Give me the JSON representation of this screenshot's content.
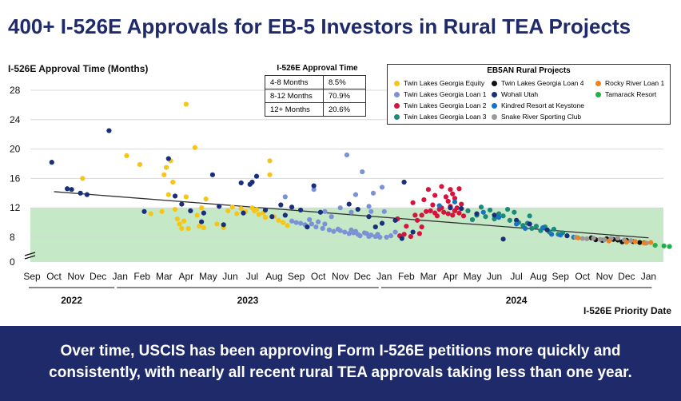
{
  "title": "400+ I-526E Approvals for EB-5 Investors in Rural TEA Projects",
  "banner": {
    "line1": "Over time, USCIS has been approving Form I-526E petitions more quickly and",
    "line2": "consistently, with nearly all recent rural TEA approvals taking less than one year."
  },
  "approval_table": {
    "title": "I-526E Approval Time",
    "rows": [
      {
        "range": "4-8 Months",
        "pct": "8.5%"
      },
      {
        "range": "8-12 Months",
        "pct": "70.9%"
      },
      {
        "range": "12+ Months",
        "pct": "20.6%"
      }
    ]
  },
  "legend": {
    "title": "EB5AN Rural Projects",
    "items": [
      {
        "name": "Twin Lakes Georgia Equity",
        "color": "#f5c518"
      },
      {
        "name": "Twin Lakes Georgia Loan 1",
        "color": "#7b93d4"
      },
      {
        "name": "Twin Lakes Georgia Loan 2",
        "color": "#d4143c"
      },
      {
        "name": "Twin Lakes Georgia Loan 3",
        "color": "#1a8a7a"
      },
      {
        "name": "Twin Lakes Georgia Loan 4",
        "color": "#111111"
      },
      {
        "name": "Wohali Utah",
        "color": "#1a2f7a"
      },
      {
        "name": "Kindred Resort at Keystone",
        "color": "#1a72c4"
      },
      {
        "name": "Snake River Sporting Club",
        "color": "#999999"
      },
      {
        "name": "Rocky River Loan 1",
        "color": "#f0821e"
      },
      {
        "name": "Tamarack Resort",
        "color": "#22b04a"
      }
    ]
  },
  "chart_data": {
    "type": "scatter",
    "ylabel": "I-526E Approval Time (Months)",
    "xlabel": "I-526E Priority Date",
    "ylim": [
      0,
      28
    ],
    "yticks": [
      0,
      8,
      12,
      16,
      20,
      24,
      28
    ],
    "x_months": [
      "Sep",
      "Oct",
      "Nov",
      "Dec",
      "Jan",
      "Feb",
      "Mar",
      "Apr",
      "May",
      "Jun",
      "Jul",
      "Aug",
      "Sep",
      "Oct",
      "Nov",
      "Dec",
      "Jan",
      "Feb",
      "Mar",
      "Apr",
      "May",
      "Jun",
      "Jul",
      "Aug",
      "Sep",
      "Oct",
      "Nov",
      "Dec",
      "Jan"
    ],
    "years": [
      {
        "label": "2022",
        "from": 0,
        "to": 3.6
      },
      {
        "label": "2023",
        "from": 4,
        "to": 15.6
      },
      {
        "label": "2024",
        "from": 16,
        "to": 28
      }
    ],
    "band": {
      "from": 0,
      "to": 12
    },
    "trend": {
      "x": [
        1,
        28
      ],
      "y": [
        14.2,
        7.8
      ]
    },
    "series": [
      {
        "name": "Twin Lakes Georgia Equity",
        "color": "#f5c518",
        "points": [
          [
            2.3,
            16
          ],
          [
            4.3,
            19.1
          ],
          [
            4.9,
            17.9
          ],
          [
            5.4,
            11.2
          ],
          [
            5.9,
            11.5
          ],
          [
            6.0,
            16.5
          ],
          [
            6.1,
            17.5
          ],
          [
            6.2,
            13.8
          ],
          [
            6.3,
            18.4
          ],
          [
            6.4,
            15.5
          ],
          [
            6.5,
            11.8
          ],
          [
            6.6,
            10.5
          ],
          [
            6.7,
            9.8
          ],
          [
            6.8,
            9.2
          ],
          [
            6.9,
            10.2
          ],
          [
            7.0,
            26.1
          ],
          [
            7.0,
            13.5
          ],
          [
            7.1,
            9.2
          ],
          [
            7.4,
            20.2
          ],
          [
            7.5,
            11.0
          ],
          [
            7.6,
            9.5
          ],
          [
            7.7,
            12.0
          ],
          [
            7.9,
            13.2
          ],
          [
            7.8,
            9.3
          ],
          [
            8.4,
            9.8
          ],
          [
            8.7,
            9.3
          ],
          [
            8.9,
            11.6
          ],
          [
            9.1,
            12.1
          ],
          [
            9.3,
            11.2
          ],
          [
            9.5,
            11.9
          ],
          [
            9.7,
            11.5
          ],
          [
            10.0,
            12.0
          ],
          [
            10.1,
            11.6
          ],
          [
            10.2,
            11.8
          ],
          [
            10.3,
            11.1
          ],
          [
            10.5,
            11.3
          ],
          [
            10.6,
            10.7
          ],
          [
            10.8,
            16.5
          ],
          [
            10.8,
            18.4
          ],
          [
            11.0,
            10.8
          ],
          [
            11.2,
            10.3
          ],
          [
            11.4,
            10.0
          ],
          [
            11.6,
            9.6
          ]
        ]
      },
      {
        "name": "Twin Lakes Georgia Loan 1",
        "color": "#7b93d4",
        "points": [
          [
            11.5,
            13.5
          ],
          [
            11.8,
            10.2
          ],
          [
            12.0,
            10.0
          ],
          [
            12.2,
            9.9
          ],
          [
            12.4,
            9.7
          ],
          [
            12.6,
            10.4
          ],
          [
            12.7,
            9.8
          ],
          [
            12.9,
            9.4
          ],
          [
            13.0,
            10.1
          ],
          [
            13.2,
            9.2
          ],
          [
            13.3,
            9.8
          ],
          [
            13.5,
            9.0
          ],
          [
            13.7,
            8.8
          ],
          [
            13.9,
            9.1
          ],
          [
            14.0,
            8.9
          ],
          [
            14.2,
            8.7
          ],
          [
            14.3,
            19.2
          ],
          [
            14.4,
            8.5
          ],
          [
            14.5,
            9.0
          ],
          [
            14.6,
            8.6
          ],
          [
            14.7,
            8.8
          ],
          [
            14.8,
            8.4
          ],
          [
            14.9,
            8.2
          ],
          [
            15.0,
            16.9
          ],
          [
            15.1,
            8.6
          ],
          [
            15.2,
            8.5
          ],
          [
            15.3,
            8.1
          ],
          [
            15.4,
            8.3
          ],
          [
            15.5,
            14.0
          ],
          [
            15.6,
            8.1
          ],
          [
            15.7,
            8.4
          ],
          [
            15.8,
            8.0
          ],
          [
            15.9,
            14.8
          ],
          [
            16.1,
            8.0
          ],
          [
            16.3,
            8.2
          ],
          [
            12.8,
            14.5
          ],
          [
            13.3,
            11.5
          ],
          [
            15.4,
            11.5
          ],
          [
            16.0,
            11.5
          ],
          [
            14.0,
            12.0
          ],
          [
            14.7,
            13.8
          ],
          [
            15.3,
            12.2
          ],
          [
            16.5,
            8.7
          ],
          [
            14.5,
            11.4
          ],
          [
            13.6,
            10.8
          ]
        ]
      },
      {
        "name": "Twin Lakes Georgia Loan 2",
        "color": "#d4143c",
        "points": [
          [
            16.6,
            10.5
          ],
          [
            16.7,
            8.2
          ],
          [
            16.9,
            8.4
          ],
          [
            17.0,
            9.5
          ],
          [
            17.2,
            8.1
          ],
          [
            17.3,
            12.7
          ],
          [
            17.4,
            11.0
          ],
          [
            17.5,
            10.3
          ],
          [
            17.6,
            8.5
          ],
          [
            17.7,
            9.4
          ],
          [
            17.8,
            13.1
          ],
          [
            17.9,
            11.5
          ],
          [
            18.0,
            14.5
          ],
          [
            18.1,
            11.6
          ],
          [
            18.2,
            12.4
          ],
          [
            18.3,
            13.7
          ],
          [
            18.4,
            10.9
          ],
          [
            18.5,
            11.8
          ],
          [
            18.6,
            14.9
          ],
          [
            18.6,
            12.0
          ],
          [
            18.7,
            11.4
          ],
          [
            18.8,
            13.5
          ],
          [
            18.9,
            11.2
          ],
          [
            19.0,
            14.5
          ],
          [
            19.0,
            12.2
          ],
          [
            19.1,
            11.0
          ],
          [
            19.2,
            13.3
          ],
          [
            19.2,
            11.6
          ],
          [
            19.3,
            12.0
          ],
          [
            19.4,
            11.3
          ],
          [
            19.5,
            12.5
          ],
          [
            19.4,
            14.6
          ],
          [
            19.6,
            10.9
          ],
          [
            17.7,
            11.0
          ],
          [
            18.3,
            11.3
          ],
          [
            18.9,
            12.9
          ],
          [
            19.1,
            13.9
          ]
        ]
      },
      {
        "name": "Twin Lakes Georgia Loan 3",
        "color": "#1a8a7a",
        "points": [
          [
            19.8,
            11.6
          ],
          [
            20.0,
            10.4
          ],
          [
            20.2,
            11.0
          ],
          [
            20.4,
            12.1
          ],
          [
            20.6,
            10.8
          ],
          [
            20.8,
            11.7
          ],
          [
            21.0,
            10.5
          ],
          [
            21.2,
            11.2
          ],
          [
            21.4,
            10.9
          ],
          [
            21.6,
            11.8
          ],
          [
            21.7,
            10.3
          ],
          [
            21.9,
            11.4
          ],
          [
            22.1,
            10.0
          ],
          [
            22.3,
            9.6
          ],
          [
            22.5,
            9.9
          ],
          [
            22.6,
            10.9
          ],
          [
            22.7,
            9.2
          ],
          [
            22.9,
            9.5
          ],
          [
            23.1,
            8.9
          ],
          [
            23.3,
            9.4
          ],
          [
            23.5,
            8.7
          ],
          [
            23.7,
            9.1
          ],
          [
            23.9,
            8.4
          ],
          [
            24.1,
            8.6
          ]
        ]
      },
      {
        "name": "Twin Lakes Georgia Loan 4",
        "color": "#111111",
        "points": [
          [
            25.4,
            7.8
          ],
          [
            25.6,
            7.2
          ],
          [
            25.9,
            7.0
          ],
          [
            26.1,
            7.5
          ],
          [
            26.4,
            7.3
          ],
          [
            26.6,
            7.1
          ],
          [
            26.8,
            6.5
          ],
          [
            27.0,
            7.0
          ],
          [
            27.3,
            6.6
          ],
          [
            27.6,
            6.3
          ],
          [
            27.8,
            6.2
          ]
        ]
      },
      {
        "name": "Wohali Utah",
        "color": "#1a2f7a",
        "points": [
          [
            0.9,
            18.2
          ],
          [
            1.6,
            14.6
          ],
          [
            1.8,
            14.5
          ],
          [
            2.2,
            14.0
          ],
          [
            2.5,
            13.8
          ],
          [
            3.5,
            22.5
          ],
          [
            5.1,
            11.5
          ],
          [
            6.2,
            18.7
          ],
          [
            6.5,
            13.6
          ],
          [
            6.8,
            12.5
          ],
          [
            7.2,
            11.6
          ],
          [
            7.7,
            10.1
          ],
          [
            7.8,
            11.3
          ],
          [
            8.2,
            16.5
          ],
          [
            8.5,
            12.2
          ],
          [
            8.7,
            9.7
          ],
          [
            9.5,
            15.4
          ],
          [
            9.6,
            11.3
          ],
          [
            9.9,
            15.2
          ],
          [
            10.0,
            15.5
          ],
          [
            10.2,
            16.3
          ],
          [
            10.6,
            11.7
          ],
          [
            10.9,
            10.8
          ],
          [
            11.3,
            12.4
          ],
          [
            11.5,
            11.0
          ],
          [
            11.8,
            12.1
          ],
          [
            12.2,
            11.7
          ],
          [
            12.5,
            9.4
          ],
          [
            12.8,
            15.0
          ],
          [
            13.1,
            11.4
          ],
          [
            14.4,
            12.5
          ],
          [
            14.8,
            11.8
          ],
          [
            15.3,
            10.8
          ],
          [
            15.6,
            9.4
          ],
          [
            15.9,
            9.9
          ],
          [
            16.5,
            10.3
          ],
          [
            16.8,
            7.6
          ],
          [
            16.9,
            15.5
          ],
          [
            17.3,
            8.7
          ],
          [
            19.0,
            12.0
          ],
          [
            19.5,
            11.9
          ],
          [
            20.2,
            11.2
          ],
          [
            21.0,
            11.0
          ],
          [
            21.4,
            7.4
          ],
          [
            22.0,
            10.3
          ],
          [
            22.6,
            9.8
          ],
          [
            23.4,
            9.0
          ],
          [
            24.3,
            8.2
          ]
        ]
      },
      {
        "name": "Kindred Resort at Keystone",
        "color": "#1a72c4",
        "points": [
          [
            18.5,
            12.3
          ],
          [
            19.2,
            12.8
          ],
          [
            20.5,
            11.4
          ],
          [
            21.2,
            10.7
          ],
          [
            22.0,
            9.8
          ],
          [
            22.4,
            9.2
          ],
          [
            23.2,
            9.3
          ],
          [
            23.6,
            8.4
          ],
          [
            24.0,
            8.3
          ],
          [
            24.6,
            8.0
          ]
        ]
      },
      {
        "name": "Snake River Sporting Club",
        "color": "#999999",
        "points": [
          [
            24.7,
            8.0
          ],
          [
            25.0,
            7.6
          ],
          [
            25.2,
            7.5
          ],
          [
            25.5,
            7.7
          ],
          [
            25.8,
            7.3
          ],
          [
            26.0,
            7.2
          ],
          [
            26.3,
            7.6
          ],
          [
            26.6,
            7.7
          ],
          [
            26.9,
            7.1
          ],
          [
            27.2,
            6.9
          ],
          [
            27.4,
            6.6
          ],
          [
            27.9,
            6.1
          ]
        ]
      },
      {
        "name": "Rocky River Loan 1",
        "color": "#f0821e",
        "points": [
          [
            26.2,
            6.8
          ],
          [
            27.0,
            6.4
          ],
          [
            27.4,
            6.6
          ],
          [
            27.8,
            6.1
          ],
          [
            28.1,
            6.3
          ],
          [
            24.8,
            7.8
          ]
        ]
      },
      {
        "name": "Tamarack Resort",
        "color": "#22b04a",
        "points": [
          [
            28.3,
            5.4
          ],
          [
            28.7,
            5.2
          ],
          [
            28.95,
            5.0
          ]
        ]
      }
    ]
  }
}
